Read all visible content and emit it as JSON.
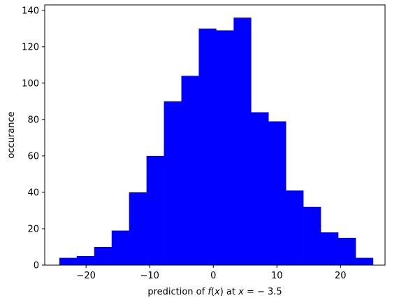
{
  "chart_data": {
    "type": "bar",
    "subtype": "histogram",
    "title": "",
    "xlabel_prefix": "prediction of ",
    "xlabel_fx": "f",
    "xlabel_mid1": "(",
    "xlabel_x1": "x",
    "xlabel_mid2": ") at ",
    "xlabel_x2": "x",
    "xlabel_suffix": " = − 3.5",
    "ylabel": "occurance",
    "xlim": [
      -26.5,
      27.0
    ],
    "ylim": [
      0,
      143
    ],
    "xticks": [
      -20,
      -10,
      0,
      10,
      20
    ],
    "xtick_labels": [
      "−20",
      "−10",
      "0",
      "10",
      "20"
    ],
    "yticks": [
      0,
      20,
      40,
      60,
      80,
      100,
      120,
      140
    ],
    "ytick_labels": [
      "0",
      "20",
      "40",
      "60",
      "80",
      "100",
      "120",
      "140"
    ],
    "bin_edges": [
      -24.2,
      -21.46,
      -18.72,
      -15.98,
      -13.24,
      -10.5,
      -7.76,
      -5.02,
      -2.28,
      0.46,
      3.2,
      5.94,
      8.68,
      11.42,
      14.16,
      16.9,
      19.64,
      22.38,
      25.12
    ],
    "values": [
      4,
      5,
      10,
      19,
      40,
      60,
      90,
      104,
      130,
      129,
      136,
      84,
      79,
      41,
      32,
      18,
      15,
      4
    ],
    "bar_color": "#0000ff"
  }
}
